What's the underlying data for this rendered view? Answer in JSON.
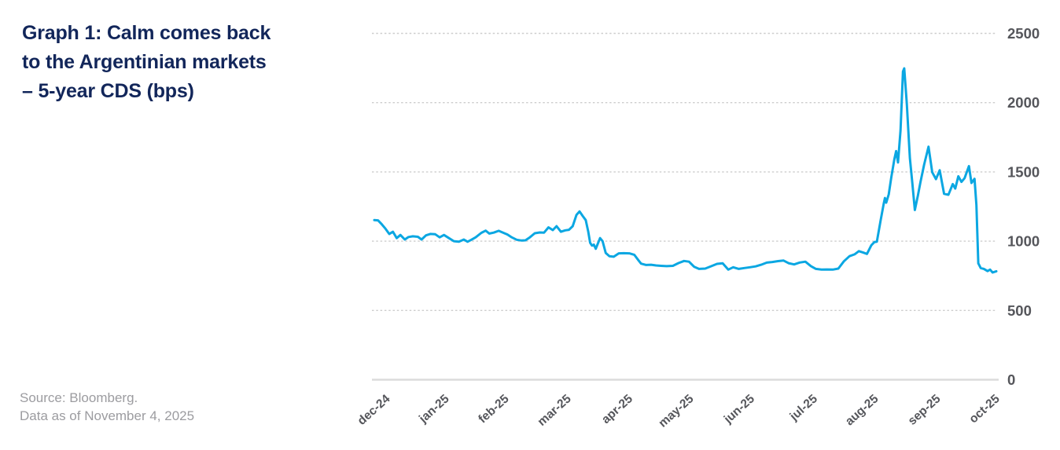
{
  "header": {
    "title_lines": [
      "Graph 1: Calm comes back",
      "to the Argentinian markets",
      "– 5-year CDS (bps)"
    ]
  },
  "footer": {
    "source_lines": [
      "Source: Bloomberg.",
      "Data as of November 4, 2025"
    ]
  },
  "colors": {
    "title": "#12265A",
    "axis_label": "#55565B",
    "source_text": "#9C9CA0",
    "line": "#0BA7E2",
    "gridline": "#CDCDCD",
    "baseline": "#DCDCDC"
  },
  "chart_data": {
    "type": "line",
    "title": "Graph 1: Calm comes back to the Argentinian markets – 5-year CDS (bps)",
    "xlabel": "",
    "ylabel": "5-year CDS (bps)",
    "ylim": [
      0,
      2500
    ],
    "yticks": [
      0,
      500,
      1000,
      1500,
      2000,
      2500
    ],
    "grid": "horizontal-dashed",
    "legend_position": "none",
    "x_ticklabels": [
      "dec-24",
      "jan-25",
      "feb-25",
      "mar-25",
      "apr-25",
      "may-25",
      "jun-25",
      "jul-25",
      "aug-25",
      "sep-25",
      "oct-25"
    ],
    "x_tick_pcts": [
      2,
      11.5,
      21.1,
      31.1,
      41,
      50.8,
      60.6,
      70.7,
      80.5,
      90.5,
      100
    ],
    "series": [
      {
        "name": "Argentina 5-year CDS (bps)",
        "color": "#0BA7E2",
        "points": [
          [
            0,
            1152
          ],
          [
            0.6,
            1150
          ],
          [
            1.2,
            1122
          ],
          [
            1.8,
            1090
          ],
          [
            2.4,
            1052
          ],
          [
            3,
            1068
          ],
          [
            3.6,
            1022
          ],
          [
            4.2,
            1045
          ],
          [
            4.9,
            1012
          ],
          [
            5.5,
            1030
          ],
          [
            6.2,
            1035
          ],
          [
            7,
            1032
          ],
          [
            7.6,
            1012
          ],
          [
            8.3,
            1042
          ],
          [
            9,
            1052
          ],
          [
            9.8,
            1050
          ],
          [
            10.5,
            1028
          ],
          [
            11.2,
            1045
          ],
          [
            12,
            1022
          ],
          [
            12.8,
            1000
          ],
          [
            13.6,
            996
          ],
          [
            14.4,
            1012
          ],
          [
            15,
            996
          ],
          [
            15.6,
            1010
          ],
          [
            16.3,
            1028
          ],
          [
            17.2,
            1060
          ],
          [
            17.9,
            1076
          ],
          [
            18.5,
            1055
          ],
          [
            19.2,
            1062
          ],
          [
            20,
            1075
          ],
          [
            20.7,
            1062
          ],
          [
            21.4,
            1048
          ],
          [
            22.1,
            1028
          ],
          [
            22.9,
            1010
          ],
          [
            23.6,
            1005
          ],
          [
            24.3,
            1006
          ],
          [
            25,
            1028
          ],
          [
            25.8,
            1057
          ],
          [
            26.6,
            1063
          ],
          [
            27.3,
            1062
          ],
          [
            28,
            1100
          ],
          [
            28.7,
            1080
          ],
          [
            29.3,
            1108
          ],
          [
            30,
            1068
          ],
          [
            30.7,
            1078
          ],
          [
            31.3,
            1082
          ],
          [
            31.9,
            1108
          ],
          [
            32.5,
            1190
          ],
          [
            33,
            1215
          ],
          [
            33.5,
            1182
          ],
          [
            34,
            1152
          ],
          [
            34.4,
            1068
          ],
          [
            34.7,
            988
          ],
          [
            35,
            968
          ],
          [
            35.3,
            975
          ],
          [
            35.6,
            945
          ],
          [
            36.3,
            1022
          ],
          [
            36.7,
            1000
          ],
          [
            37.2,
            915
          ],
          [
            37.8,
            892
          ],
          [
            38.5,
            888
          ],
          [
            39.3,
            912
          ],
          [
            40.1,
            913
          ],
          [
            41,
            912
          ],
          [
            41.8,
            902
          ],
          [
            42.5,
            860
          ],
          [
            42.9,
            838
          ],
          [
            43.7,
            828
          ],
          [
            44.5,
            830
          ],
          [
            45.3,
            825
          ],
          [
            46.1,
            822
          ],
          [
            47,
            820
          ],
          [
            48,
            822
          ],
          [
            48.9,
            842
          ],
          [
            49.8,
            857
          ],
          [
            50.6,
            852
          ],
          [
            51.4,
            816
          ],
          [
            52.2,
            800
          ],
          [
            53.2,
            802
          ],
          [
            54.2,
            820
          ],
          [
            55.1,
            836
          ],
          [
            56,
            840
          ],
          [
            56.9,
            795
          ],
          [
            57.7,
            812
          ],
          [
            58.6,
            800
          ],
          [
            59.5,
            806
          ],
          [
            60.4,
            812
          ],
          [
            61.3,
            818
          ],
          [
            62.2,
            830
          ],
          [
            63.1,
            845
          ],
          [
            64,
            850
          ],
          [
            64.9,
            856
          ],
          [
            65.8,
            860
          ],
          [
            66.6,
            841
          ],
          [
            67.5,
            832
          ],
          [
            68.4,
            846
          ],
          [
            69.3,
            852
          ],
          [
            70.2,
            820
          ],
          [
            71,
            800
          ],
          [
            71.9,
            795
          ],
          [
            72.8,
            796
          ],
          [
            73.7,
            795
          ],
          [
            74.6,
            802
          ],
          [
            75.5,
            855
          ],
          [
            76.4,
            892
          ],
          [
            77.2,
            905
          ],
          [
            77.9,
            928
          ],
          [
            78.6,
            918
          ],
          [
            79.2,
            908
          ],
          [
            79.9,
            970
          ],
          [
            80.4,
            994
          ],
          [
            80.8,
            996
          ],
          [
            81.4,
            1150
          ],
          [
            81.9,
            1270
          ],
          [
            82.1,
            1312
          ],
          [
            82.3,
            1278
          ],
          [
            82.7,
            1338
          ],
          [
            83.1,
            1455
          ],
          [
            83.6,
            1590
          ],
          [
            83.9,
            1650
          ],
          [
            84.2,
            1568
          ],
          [
            84.6,
            1800
          ],
          [
            85,
            2225
          ],
          [
            85.2,
            2248
          ],
          [
            85.6,
            2000
          ],
          [
            86.1,
            1600
          ],
          [
            86.5,
            1420
          ],
          [
            86.9,
            1225
          ],
          [
            87.4,
            1330
          ],
          [
            87.8,
            1425
          ],
          [
            88.4,
            1552
          ],
          [
            89.1,
            1682
          ],
          [
            89.7,
            1498
          ],
          [
            90.3,
            1448
          ],
          [
            90.9,
            1512
          ],
          [
            91.6,
            1342
          ],
          [
            92.3,
            1335
          ],
          [
            93,
            1412
          ],
          [
            93.4,
            1380
          ],
          [
            93.9,
            1468
          ],
          [
            94.4,
            1428
          ],
          [
            94.9,
            1455
          ],
          [
            95.6,
            1542
          ],
          [
            96,
            1420
          ],
          [
            96.5,
            1450
          ],
          [
            96.8,
            1260
          ],
          [
            97.1,
            840
          ],
          [
            97.5,
            806
          ],
          [
            98,
            800
          ],
          [
            98.6,
            784
          ],
          [
            99,
            795
          ],
          [
            99.4,
            774
          ],
          [
            100,
            783
          ]
        ]
      }
    ]
  }
}
